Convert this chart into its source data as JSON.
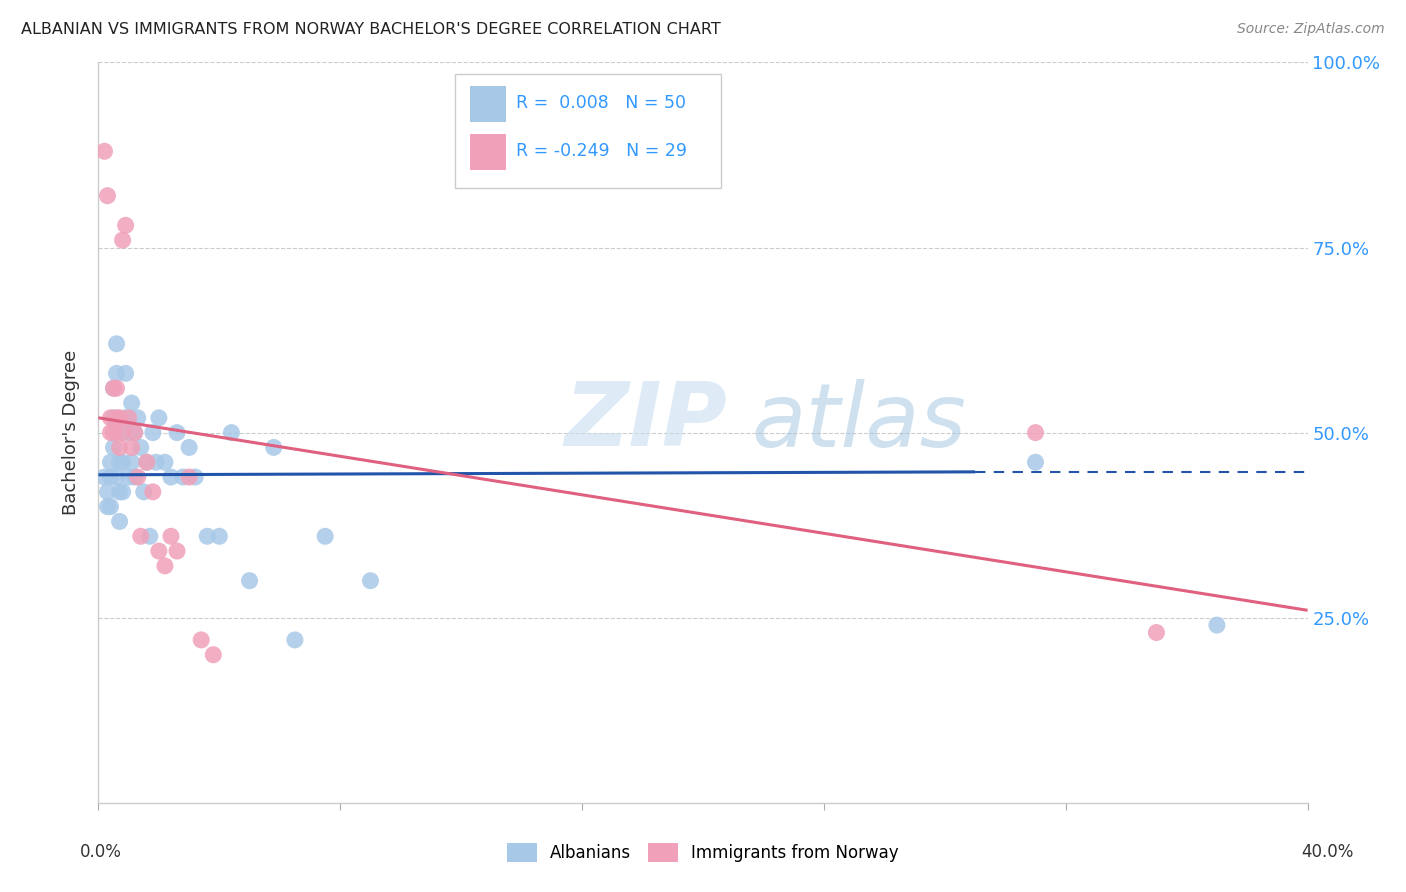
{
  "title": "ALBANIAN VS IMMIGRANTS FROM NORWAY BACHELOR'S DEGREE CORRELATION CHART",
  "source": "Source: ZipAtlas.com",
  "ylabel": "Bachelor's Degree",
  "xmin": 0.0,
  "xmax": 0.4,
  "ymin": 0.0,
  "ymax": 1.0,
  "yticks": [
    0.0,
    0.25,
    0.5,
    0.75,
    1.0
  ],
  "ytick_labels": [
    "",
    "25.0%",
    "50.0%",
    "75.0%",
    "100.0%"
  ],
  "watermark_zip": "ZIP",
  "watermark_atlas": "atlas",
  "blue_color": "#a8c8e8",
  "pink_color": "#f0a0b8",
  "blue_line_color": "#2255aa",
  "pink_line_color": "#e06080",
  "blue_points_x": [
    0.002,
    0.003,
    0.003,
    0.004,
    0.004,
    0.004,
    0.005,
    0.005,
    0.005,
    0.006,
    0.006,
    0.006,
    0.007,
    0.007,
    0.007,
    0.008,
    0.008,
    0.008,
    0.009,
    0.009,
    0.01,
    0.01,
    0.011,
    0.011,
    0.012,
    0.012,
    0.013,
    0.014,
    0.015,
    0.016,
    0.017,
    0.018,
    0.019,
    0.02,
    0.022,
    0.024,
    0.026,
    0.028,
    0.03,
    0.032,
    0.036,
    0.04,
    0.044,
    0.05,
    0.058,
    0.065,
    0.075,
    0.09,
    0.31,
    0.37
  ],
  "blue_points_y": [
    0.44,
    0.42,
    0.4,
    0.46,
    0.44,
    0.4,
    0.56,
    0.52,
    0.48,
    0.62,
    0.58,
    0.44,
    0.46,
    0.42,
    0.38,
    0.5,
    0.46,
    0.42,
    0.58,
    0.52,
    0.5,
    0.44,
    0.54,
    0.46,
    0.5,
    0.44,
    0.52,
    0.48,
    0.42,
    0.46,
    0.36,
    0.5,
    0.46,
    0.52,
    0.46,
    0.44,
    0.5,
    0.44,
    0.48,
    0.44,
    0.36,
    0.36,
    0.5,
    0.3,
    0.48,
    0.22,
    0.36,
    0.3,
    0.46,
    0.24
  ],
  "pink_points_x": [
    0.002,
    0.003,
    0.004,
    0.004,
    0.005,
    0.005,
    0.006,
    0.006,
    0.007,
    0.007,
    0.008,
    0.008,
    0.009,
    0.01,
    0.011,
    0.012,
    0.013,
    0.014,
    0.016,
    0.018,
    0.02,
    0.022,
    0.024,
    0.026,
    0.03,
    0.034,
    0.038,
    0.31,
    0.35
  ],
  "pink_points_y": [
    0.88,
    0.82,
    0.52,
    0.5,
    0.56,
    0.5,
    0.56,
    0.52,
    0.52,
    0.48,
    0.76,
    0.5,
    0.78,
    0.52,
    0.48,
    0.5,
    0.44,
    0.36,
    0.46,
    0.42,
    0.34,
    0.32,
    0.36,
    0.34,
    0.44,
    0.22,
    0.2,
    0.5,
    0.23
  ],
  "blue_line_x0": 0.0,
  "blue_line_x1": 0.29,
  "blue_line_x2": 0.4,
  "blue_line_y0": 0.443,
  "blue_line_y1": 0.447,
  "blue_line_y2": 0.447,
  "pink_line_x0": 0.0,
  "pink_line_x1": 0.4,
  "pink_line_y0": 0.52,
  "pink_line_y1": 0.26
}
